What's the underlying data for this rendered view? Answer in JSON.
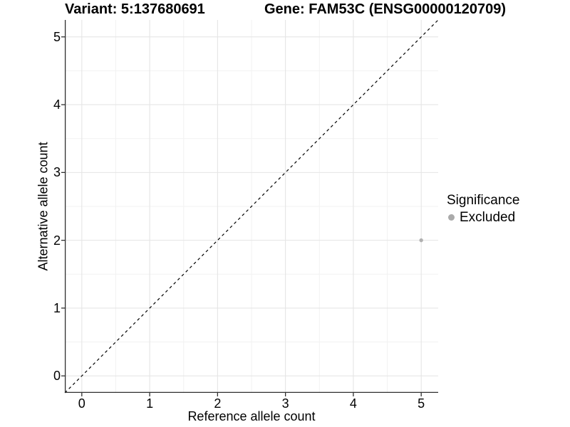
{
  "chart_data": {
    "type": "scatter",
    "titles": {
      "left": "Variant: 5:137680691",
      "right": "Gene: FAM53C (ENSG00000120709)"
    },
    "xlabel": "Reference allele count",
    "ylabel": "Alternative allele count",
    "xlim": [
      -0.25,
      5.25
    ],
    "ylim": [
      -0.25,
      5.25
    ],
    "xticks": [
      0,
      1,
      2,
      3,
      4,
      5
    ],
    "yticks": [
      0,
      1,
      2,
      3,
      4,
      5
    ],
    "minor_grid_step": 0.5,
    "grid": "major+minor",
    "reference_line": {
      "equation": "y = x",
      "style": "dashed",
      "color": "#000000"
    },
    "series": [
      {
        "name": "Excluded",
        "color": "#b0b0b0",
        "point_radius": 2.7,
        "points": [
          {
            "x": 5,
            "y": 2
          }
        ]
      }
    ],
    "legend": {
      "title": "Significance",
      "position": "right",
      "items": [
        {
          "label": "Excluded",
          "color": "#aaaaaa"
        }
      ]
    },
    "colors": {
      "background": "#ffffff",
      "grid_major": "#e5e5e5",
      "grid_minor": "#f2f2f2",
      "axis": "#2f2f2f",
      "text": "#000000"
    }
  }
}
